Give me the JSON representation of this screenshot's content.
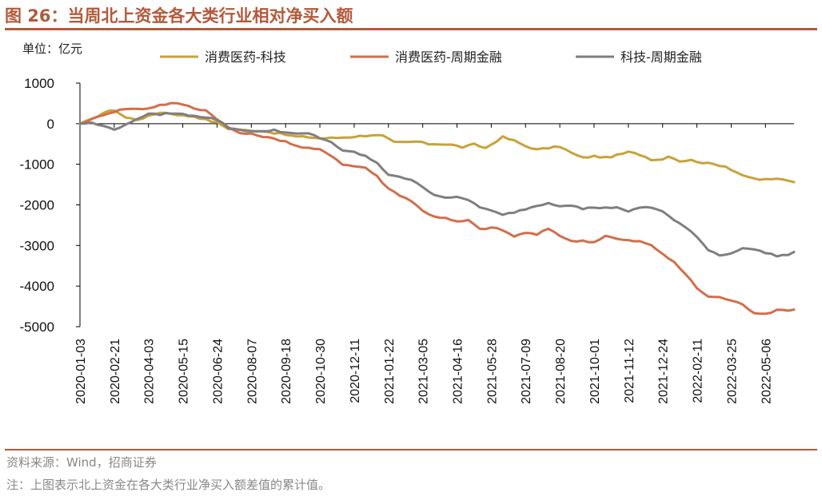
{
  "figure": {
    "title": "图 26：当周北上资金各大类行业相对净买入额",
    "unit": "单位：亿元",
    "source": "资料来源：Wind，招商证券",
    "note": "注：上图表示北上资金在各大类行业净买入额差值的累计值。"
  },
  "colors": {
    "accent": "#b35a3c",
    "series": [
      "#c8a23a",
      "#d26e4b",
      "#7f7f7f"
    ]
  },
  "chart_data": {
    "type": "line",
    "title": "当周北上资金各大类行业相对净买入额",
    "xlabel": "",
    "ylabel": "亿元",
    "ylim": [
      -5000,
      1000
    ],
    "yticks": [
      "1000",
      "0",
      "-1000",
      "-2000",
      "-3000",
      "-4000",
      "-5000"
    ],
    "x_tick_labels": [
      "2020-01-03",
      "2020-02-21",
      "2020-04-03",
      "2020-05-15",
      "2020-06-24",
      "2020-08-07",
      "2020-09-18",
      "2020-10-30",
      "2020-12-11",
      "2021-01-22",
      "2021-03-05",
      "2021-04-16",
      "2021-05-28",
      "2021-07-09",
      "2021-08-20",
      "2021-10-01",
      "2021-11-12",
      "2021-12-24",
      "2022-02-11",
      "2022-03-25",
      "2022-05-06"
    ],
    "weeks_per_tick": 6,
    "total_weeks": 125,
    "legend_position": "top",
    "series": [
      {
        "name": "消费医药-科技",
        "anchors": [
          [
            0,
            0
          ],
          [
            2,
            100
          ],
          [
            4,
            260
          ],
          [
            6,
            340
          ],
          [
            8,
            150
          ],
          [
            10,
            100
          ],
          [
            12,
            180
          ],
          [
            14,
            280
          ],
          [
            16,
            250
          ],
          [
            18,
            200
          ],
          [
            20,
            180
          ],
          [
            22,
            100
          ],
          [
            24,
            20
          ],
          [
            26,
            -120
          ],
          [
            28,
            -150
          ],
          [
            30,
            -180
          ],
          [
            32,
            -180
          ],
          [
            35,
            -250
          ],
          [
            38,
            -320
          ],
          [
            40,
            -330
          ],
          [
            42,
            -360
          ],
          [
            45,
            -350
          ],
          [
            48,
            -320
          ],
          [
            51,
            -280
          ],
          [
            53,
            -300
          ],
          [
            55,
            -460
          ],
          [
            57,
            -460
          ],
          [
            59,
            -440
          ],
          [
            61,
            -500
          ],
          [
            63,
            -500
          ],
          [
            65,
            -520
          ],
          [
            67,
            -580
          ],
          [
            69,
            -510
          ],
          [
            71,
            -600
          ],
          [
            73,
            -420
          ],
          [
            74,
            -330
          ],
          [
            76,
            -420
          ],
          [
            78,
            -550
          ],
          [
            80,
            -640
          ],
          [
            82,
            -600
          ],
          [
            84,
            -560
          ],
          [
            86,
            -720
          ],
          [
            88,
            -840
          ],
          [
            90,
            -800
          ],
          [
            92,
            -840
          ],
          [
            94,
            -780
          ],
          [
            96,
            -700
          ],
          [
            98,
            -760
          ],
          [
            100,
            -880
          ],
          [
            102,
            -880
          ],
          [
            103,
            -790
          ],
          [
            105,
            -920
          ],
          [
            107,
            -900
          ],
          [
            109,
            -960
          ],
          [
            111,
            -1000
          ],
          [
            113,
            -1050
          ],
          [
            115,
            -1200
          ],
          [
            117,
            -1330
          ],
          [
            119,
            -1380
          ],
          [
            121,
            -1360
          ],
          [
            123,
            -1380
          ],
          [
            125,
            -1440
          ]
        ]
      },
      {
        "name": "消费医药-周期金融",
        "anchors": [
          [
            0,
            0
          ],
          [
            2,
            100
          ],
          [
            4,
            220
          ],
          [
            6,
            300
          ],
          [
            8,
            370
          ],
          [
            10,
            360
          ],
          [
            12,
            380
          ],
          [
            14,
            460
          ],
          [
            16,
            500
          ],
          [
            18,
            480
          ],
          [
            20,
            380
          ],
          [
            22,
            330
          ],
          [
            24,
            120
          ],
          [
            26,
            -100
          ],
          [
            28,
            -230
          ],
          [
            30,
            -260
          ],
          [
            32,
            -310
          ],
          [
            34,
            -380
          ],
          [
            36,
            -430
          ],
          [
            38,
            -560
          ],
          [
            40,
            -610
          ],
          [
            42,
            -640
          ],
          [
            44,
            -780
          ],
          [
            46,
            -1000
          ],
          [
            48,
            -1050
          ],
          [
            50,
            -1080
          ],
          [
            52,
            -1300
          ],
          [
            54,
            -1600
          ],
          [
            56,
            -1760
          ],
          [
            58,
            -1900
          ],
          [
            60,
            -2150
          ],
          [
            62,
            -2280
          ],
          [
            64,
            -2330
          ],
          [
            66,
            -2420
          ],
          [
            68,
            -2380
          ],
          [
            70,
            -2600
          ],
          [
            72,
            -2560
          ],
          [
            74,
            -2620
          ],
          [
            76,
            -2780
          ],
          [
            78,
            -2680
          ],
          [
            80,
            -2740
          ],
          [
            82,
            -2580
          ],
          [
            84,
            -2750
          ],
          [
            86,
            -2900
          ],
          [
            88,
            -2880
          ],
          [
            90,
            -2920
          ],
          [
            92,
            -2760
          ],
          [
            94,
            -2840
          ],
          [
            96,
            -2880
          ],
          [
            98,
            -2900
          ],
          [
            100,
            -3000
          ],
          [
            102,
            -3200
          ],
          [
            104,
            -3420
          ],
          [
            106,
            -3700
          ],
          [
            108,
            -4050
          ],
          [
            110,
            -4260
          ],
          [
            112,
            -4280
          ],
          [
            114,
            -4350
          ],
          [
            116,
            -4460
          ],
          [
            118,
            -4650
          ],
          [
            120,
            -4680
          ],
          [
            122,
            -4600
          ],
          [
            125,
            -4580
          ]
        ]
      },
      {
        "name": "科技-周期金融",
        "anchors": [
          [
            0,
            0
          ],
          [
            2,
            20
          ],
          [
            4,
            -60
          ],
          [
            6,
            -130
          ],
          [
            8,
            -40
          ],
          [
            10,
            130
          ],
          [
            12,
            230
          ],
          [
            14,
            230
          ],
          [
            16,
            260
          ],
          [
            18,
            230
          ],
          [
            20,
            200
          ],
          [
            22,
            160
          ],
          [
            24,
            100
          ],
          [
            26,
            -100
          ],
          [
            28,
            -150
          ],
          [
            30,
            -180
          ],
          [
            32,
            -200
          ],
          [
            34,
            -150
          ],
          [
            36,
            -220
          ],
          [
            38,
            -260
          ],
          [
            40,
            -240
          ],
          [
            42,
            -350
          ],
          [
            44,
            -450
          ],
          [
            46,
            -680
          ],
          [
            48,
            -700
          ],
          [
            50,
            -800
          ],
          [
            52,
            -980
          ],
          [
            54,
            -1250
          ],
          [
            56,
            -1300
          ],
          [
            58,
            -1400
          ],
          [
            60,
            -1550
          ],
          [
            62,
            -1750
          ],
          [
            64,
            -1810
          ],
          [
            66,
            -1820
          ],
          [
            68,
            -1880
          ],
          [
            70,
            -2050
          ],
          [
            72,
            -2150
          ],
          [
            74,
            -2250
          ],
          [
            76,
            -2180
          ],
          [
            78,
            -2100
          ],
          [
            80,
            -2020
          ],
          [
            82,
            -1950
          ],
          [
            84,
            -2020
          ],
          [
            86,
            -2000
          ],
          [
            88,
            -2100
          ],
          [
            90,
            -2060
          ],
          [
            92,
            -2080
          ],
          [
            94,
            -2050
          ],
          [
            96,
            -2180
          ],
          [
            98,
            -2060
          ],
          [
            100,
            -2070
          ],
          [
            102,
            -2150
          ],
          [
            104,
            -2380
          ],
          [
            106,
            -2550
          ],
          [
            108,
            -2800
          ],
          [
            110,
            -3100
          ],
          [
            112,
            -3240
          ],
          [
            114,
            -3200
          ],
          [
            116,
            -3050
          ],
          [
            118,
            -3100
          ],
          [
            120,
            -3180
          ],
          [
            122,
            -3250
          ],
          [
            124,
            -3230
          ],
          [
            125,
            -3160
          ]
        ]
      }
    ]
  }
}
